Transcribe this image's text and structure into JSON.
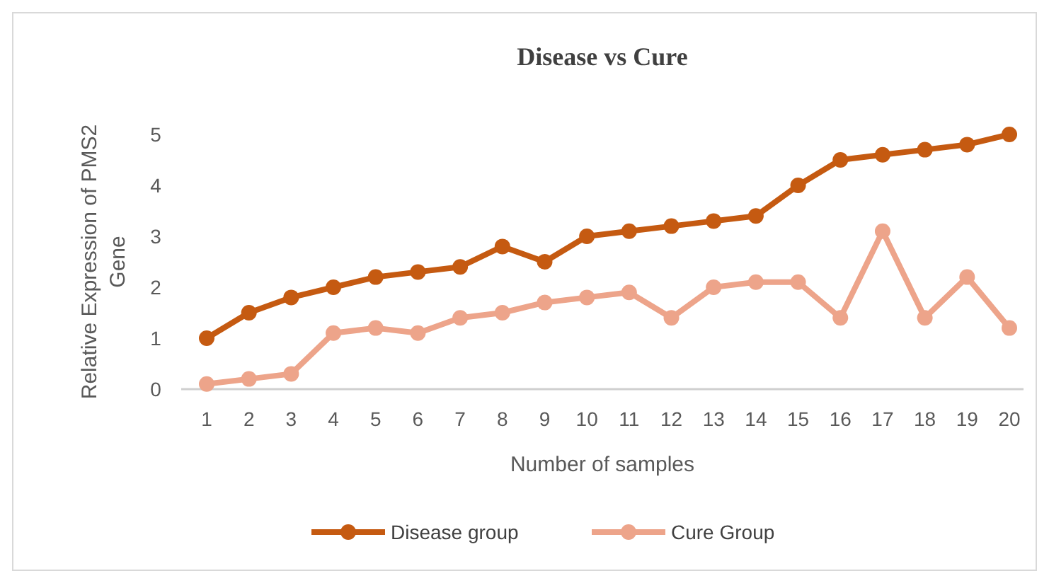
{
  "chart_data": {
    "type": "line",
    "title": "Disease vs Cure",
    "xlabel": "Number of samples",
    "ylabel": "Relative Expression of PMS2 Gene",
    "categories": [
      "1",
      "2",
      "3",
      "4",
      "5",
      "6",
      "7",
      "8",
      "9",
      "10",
      "11",
      "12",
      "13",
      "14",
      "15",
      "16",
      "17",
      "18",
      "19",
      "20"
    ],
    "series": [
      {
        "name": "Disease group",
        "color": "#c55a11",
        "values": [
          1.0,
          1.5,
          1.8,
          2.0,
          2.2,
          2.3,
          2.4,
          2.8,
          2.5,
          3.0,
          3.1,
          3.2,
          3.3,
          3.4,
          4.0,
          4.5,
          4.6,
          4.7,
          4.8,
          5.0
        ]
      },
      {
        "name": "Cure Group",
        "color": "#eda48a",
        "values": [
          0.1,
          0.2,
          0.3,
          1.1,
          1.2,
          1.1,
          1.4,
          1.5,
          1.7,
          1.8,
          1.9,
          1.4,
          2.0,
          2.1,
          2.1,
          1.4,
          3.1,
          1.4,
          2.2,
          1.2
        ]
      }
    ],
    "ylim": [
      0,
      5
    ],
    "yticks": [
      0,
      1,
      2,
      3,
      4,
      5
    ],
    "grid": false,
    "legend": "bottom",
    "marker": "circle",
    "line_style": "solid"
  }
}
